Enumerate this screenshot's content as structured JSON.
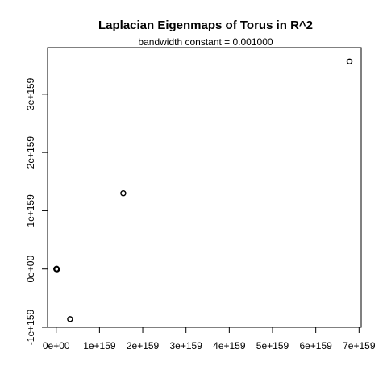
{
  "chart_data": {
    "type": "scatter",
    "title": "Laplacian Eigenmaps of Torus in R^2",
    "subtitle": "bandwidth constant = 0.001000",
    "xlabel": "",
    "ylabel": "",
    "xlim": [
      -2e+158,
      7.05e+159
    ],
    "ylim": [
      -1e+159,
      3.8e+159
    ],
    "x_ticks": [
      {
        "value": 0,
        "label": "0e+00"
      },
      {
        "value": 1e+159,
        "label": "1e+159"
      },
      {
        "value": 2e+159,
        "label": "2e+159"
      },
      {
        "value": 3e+159,
        "label": "3e+159"
      },
      {
        "value": 4e+159,
        "label": "4e+159"
      },
      {
        "value": 5e+159,
        "label": "5e+159"
      },
      {
        "value": 6e+159,
        "label": "6e+159"
      },
      {
        "value": 7e+159,
        "label": "7e+159"
      }
    ],
    "y_ticks": [
      {
        "value": -1e+159,
        "label": "-1e+159"
      },
      {
        "value": 0,
        "label": "0e+00"
      },
      {
        "value": 1e+159,
        "label": "1e+159"
      },
      {
        "value": 2e+159,
        "label": "2e+159"
      },
      {
        "value": 3e+159,
        "label": "3e+159"
      }
    ],
    "points": [
      {
        "x": 0,
        "y": 0
      },
      {
        "x": 1e+157,
        "y": 5e+156
      },
      {
        "x": 2e+157,
        "y": -5e+156
      },
      {
        "x": 3.2e+158,
        "y": -8.6e+158
      },
      {
        "x": 1.55e+159,
        "y": 1.3e+159
      },
      {
        "x": 6.78e+159,
        "y": 3.56e+159
      }
    ],
    "grid": false,
    "legend": "none"
  }
}
